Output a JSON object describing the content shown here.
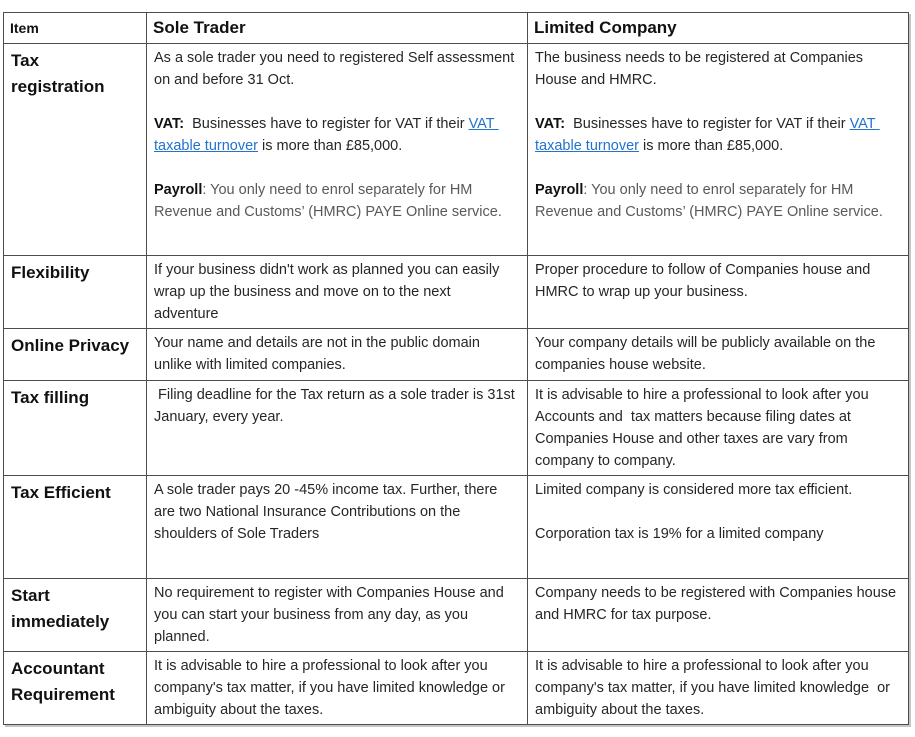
{
  "colors": {
    "border": "#4d4d4d",
    "heading_text": "#111111",
    "body_text": "#262626",
    "muted_text": "#595959",
    "link": "#2272ce",
    "shadow": "#c4c4c4"
  },
  "table": {
    "columns": [
      {
        "key": "item",
        "label": "Item"
      },
      {
        "key": "sole_trader",
        "label": "Sole Trader"
      },
      {
        "key": "limited_company",
        "label": "Limited Company"
      }
    ],
    "rows": [
      {
        "item": "Tax registration",
        "sole_trader": [
          "As a sole trader you need to registered Self assessment on and before 31 Oct.",
          "",
          [
            {
              "text": "VAT:",
              "style": "bold"
            },
            {
              "text": "  Businesses have to register for VAT if their ",
              "style": "plain"
            },
            {
              "text": "VAT taxable turnover",
              "style": "link"
            },
            {
              "text": " is more than £85,000.",
              "style": "plain"
            }
          ],
          "",
          [
            {
              "text": "Payroll",
              "style": "bold"
            },
            {
              "text": ": You only need to enrol separately for HM Revenue and Customs’ (HMRC) PAYE Online service.",
              "style": "muted"
            }
          ]
        ],
        "limited_company": [
          "The business needs to be registered at Companies House and HMRC.",
          "",
          [
            {
              "text": "VAT:",
              "style": "bold"
            },
            {
              "text": "  Businesses have to register for VAT if their ",
              "style": "plain"
            },
            {
              "text": "VAT taxable turnover",
              "style": "link"
            },
            {
              "text": " is more than £85,000.",
              "style": "plain"
            }
          ],
          "",
          [
            {
              "text": "Payroll",
              "style": "bold"
            },
            {
              "text": ": You only need to enrol separately for HM Revenue and Customs’ (HMRC) PAYE Online service.",
              "style": "muted"
            }
          ]
        ]
      },
      {
        "item": "Flexibility",
        "sole_trader": [
          "If your business didn't work as planned you can easily wrap up the business and move on to the next adventure"
        ],
        "limited_company": [
          "Proper procedure to follow of Companies house and HMRC to wrap up your business."
        ]
      },
      {
        "item": "Online Privacy",
        "sole_trader": [
          "Your name and details are not in the public domain unlike with limited companies."
        ],
        "limited_company": [
          "Your company details will be publicly available on the companies house website."
        ]
      },
      {
        "item": "Tax filling",
        "sole_trader": [
          " Filing deadline for the Tax return as a sole trader is 31st January, every year."
        ],
        "limited_company": [
          "It is advisable to hire a professional to look after you Accounts and  tax matters because filing dates at Companies House and other taxes are vary from company to company."
        ]
      },
      {
        "item": "Tax Efficient",
        "sole_trader": [
          "A sole trader pays 20 -45% income tax. Further, there are two National Insurance Contributions on the shoulders of Sole Traders"
        ],
        "limited_company": [
          "Limited company is considered more tax efficient.",
          "",
          "Corporation tax is 19% for a limited company"
        ]
      },
      {
        "item": "Start immediately",
        "sole_trader": [
          "No requirement to register with Companies House and you can start your business from any day, as you planned."
        ],
        "limited_company": [
          "Company needs to be registered with Companies house and HMRC for tax purpose."
        ]
      },
      {
        "item": "Accountant Requirement",
        "sole_trader": [
          "It is advisable to hire a professional to look after you company's tax matter, if you have limited knowledge or ambiguity about the taxes."
        ],
        "limited_company": [
          "It is advisable to hire a professional to look after you company's tax matter, if you have limited knowledge  or ambiguity about the taxes."
        ]
      }
    ]
  }
}
